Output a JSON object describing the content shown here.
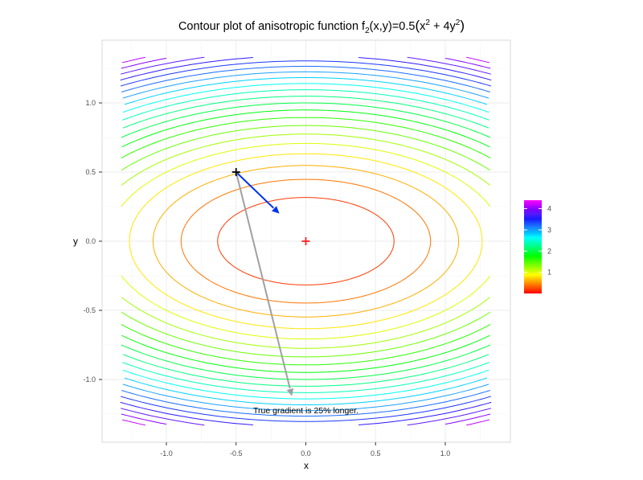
{
  "chart_data": {
    "type": "contour",
    "title": "Contour plot of anisotropic function f2(x,y)=0.5(x^2 + 4y^2)",
    "title_parts": {
      "prefix": "Contour plot of anisotropic function f",
      "sub": "2",
      "mid": "(x,y)=0.5",
      "expr_open": "(x",
      "sup1": "2",
      "plus": " + 4y",
      "sup2": "2",
      "expr_close": ")"
    },
    "xlabel": "x",
    "ylabel": "y",
    "xlim": [
      -1.45,
      1.45
    ],
    "ylim": [
      -1.45,
      1.45
    ],
    "domain": [
      -1.33,
      1.33
    ],
    "x_ticks": [
      -1.0,
      -0.5,
      0.0,
      0.5,
      1.0
    ],
    "x_tick_labels": [
      "-1.0",
      "-0.5",
      "0.0",
      "0.5",
      "1.0"
    ],
    "y_ticks": [
      1.0,
      0.5,
      0.0,
      -0.5,
      -1.0
    ],
    "y_tick_labels": [
      "1.0",
      "0.5",
      "0.0",
      "-0.5",
      "-1.0"
    ],
    "function": "0.5*(x^2 + 4*y^2)",
    "contour_levels": [
      0.2,
      0.4,
      0.6,
      0.8,
      1.0,
      1.2,
      1.4,
      1.6,
      1.8,
      2.0,
      2.2,
      2.4,
      2.6,
      2.8,
      3.0,
      3.2,
      3.4,
      3.6,
      3.8,
      4.0,
      4.2,
      4.4
    ],
    "color_scale": {
      "min": 0.0,
      "max": 4.4,
      "palette": "rainbow red-to-magenta"
    },
    "grid": true,
    "legend": {
      "position": "right",
      "type": "colorbar",
      "labels": [
        "4",
        "3",
        "2",
        "1"
      ],
      "values": [
        4,
        3,
        2,
        1
      ]
    },
    "points": [
      {
        "name": "start-point",
        "x": -0.5,
        "y": 0.5,
        "marker": "+",
        "color": "#000000"
      },
      {
        "name": "minimum",
        "x": 0.0,
        "y": 0.0,
        "marker": "+",
        "color": "#ff2020"
      }
    ],
    "arrows": [
      {
        "name": "blue-arrow",
        "from": [
          -0.5,
          0.5
        ],
        "to": [
          -0.19,
          0.2
        ],
        "color": "#0033ee"
      },
      {
        "name": "gray-gradient-arrow",
        "from": [
          -0.5,
          0.5
        ],
        "to": [
          -0.1,
          -1.12
        ],
        "color": "#a0a0a0"
      }
    ],
    "annotations": [
      {
        "text": "True gradient is 25% longer.",
        "x": 0.0,
        "y": -1.22
      }
    ]
  }
}
